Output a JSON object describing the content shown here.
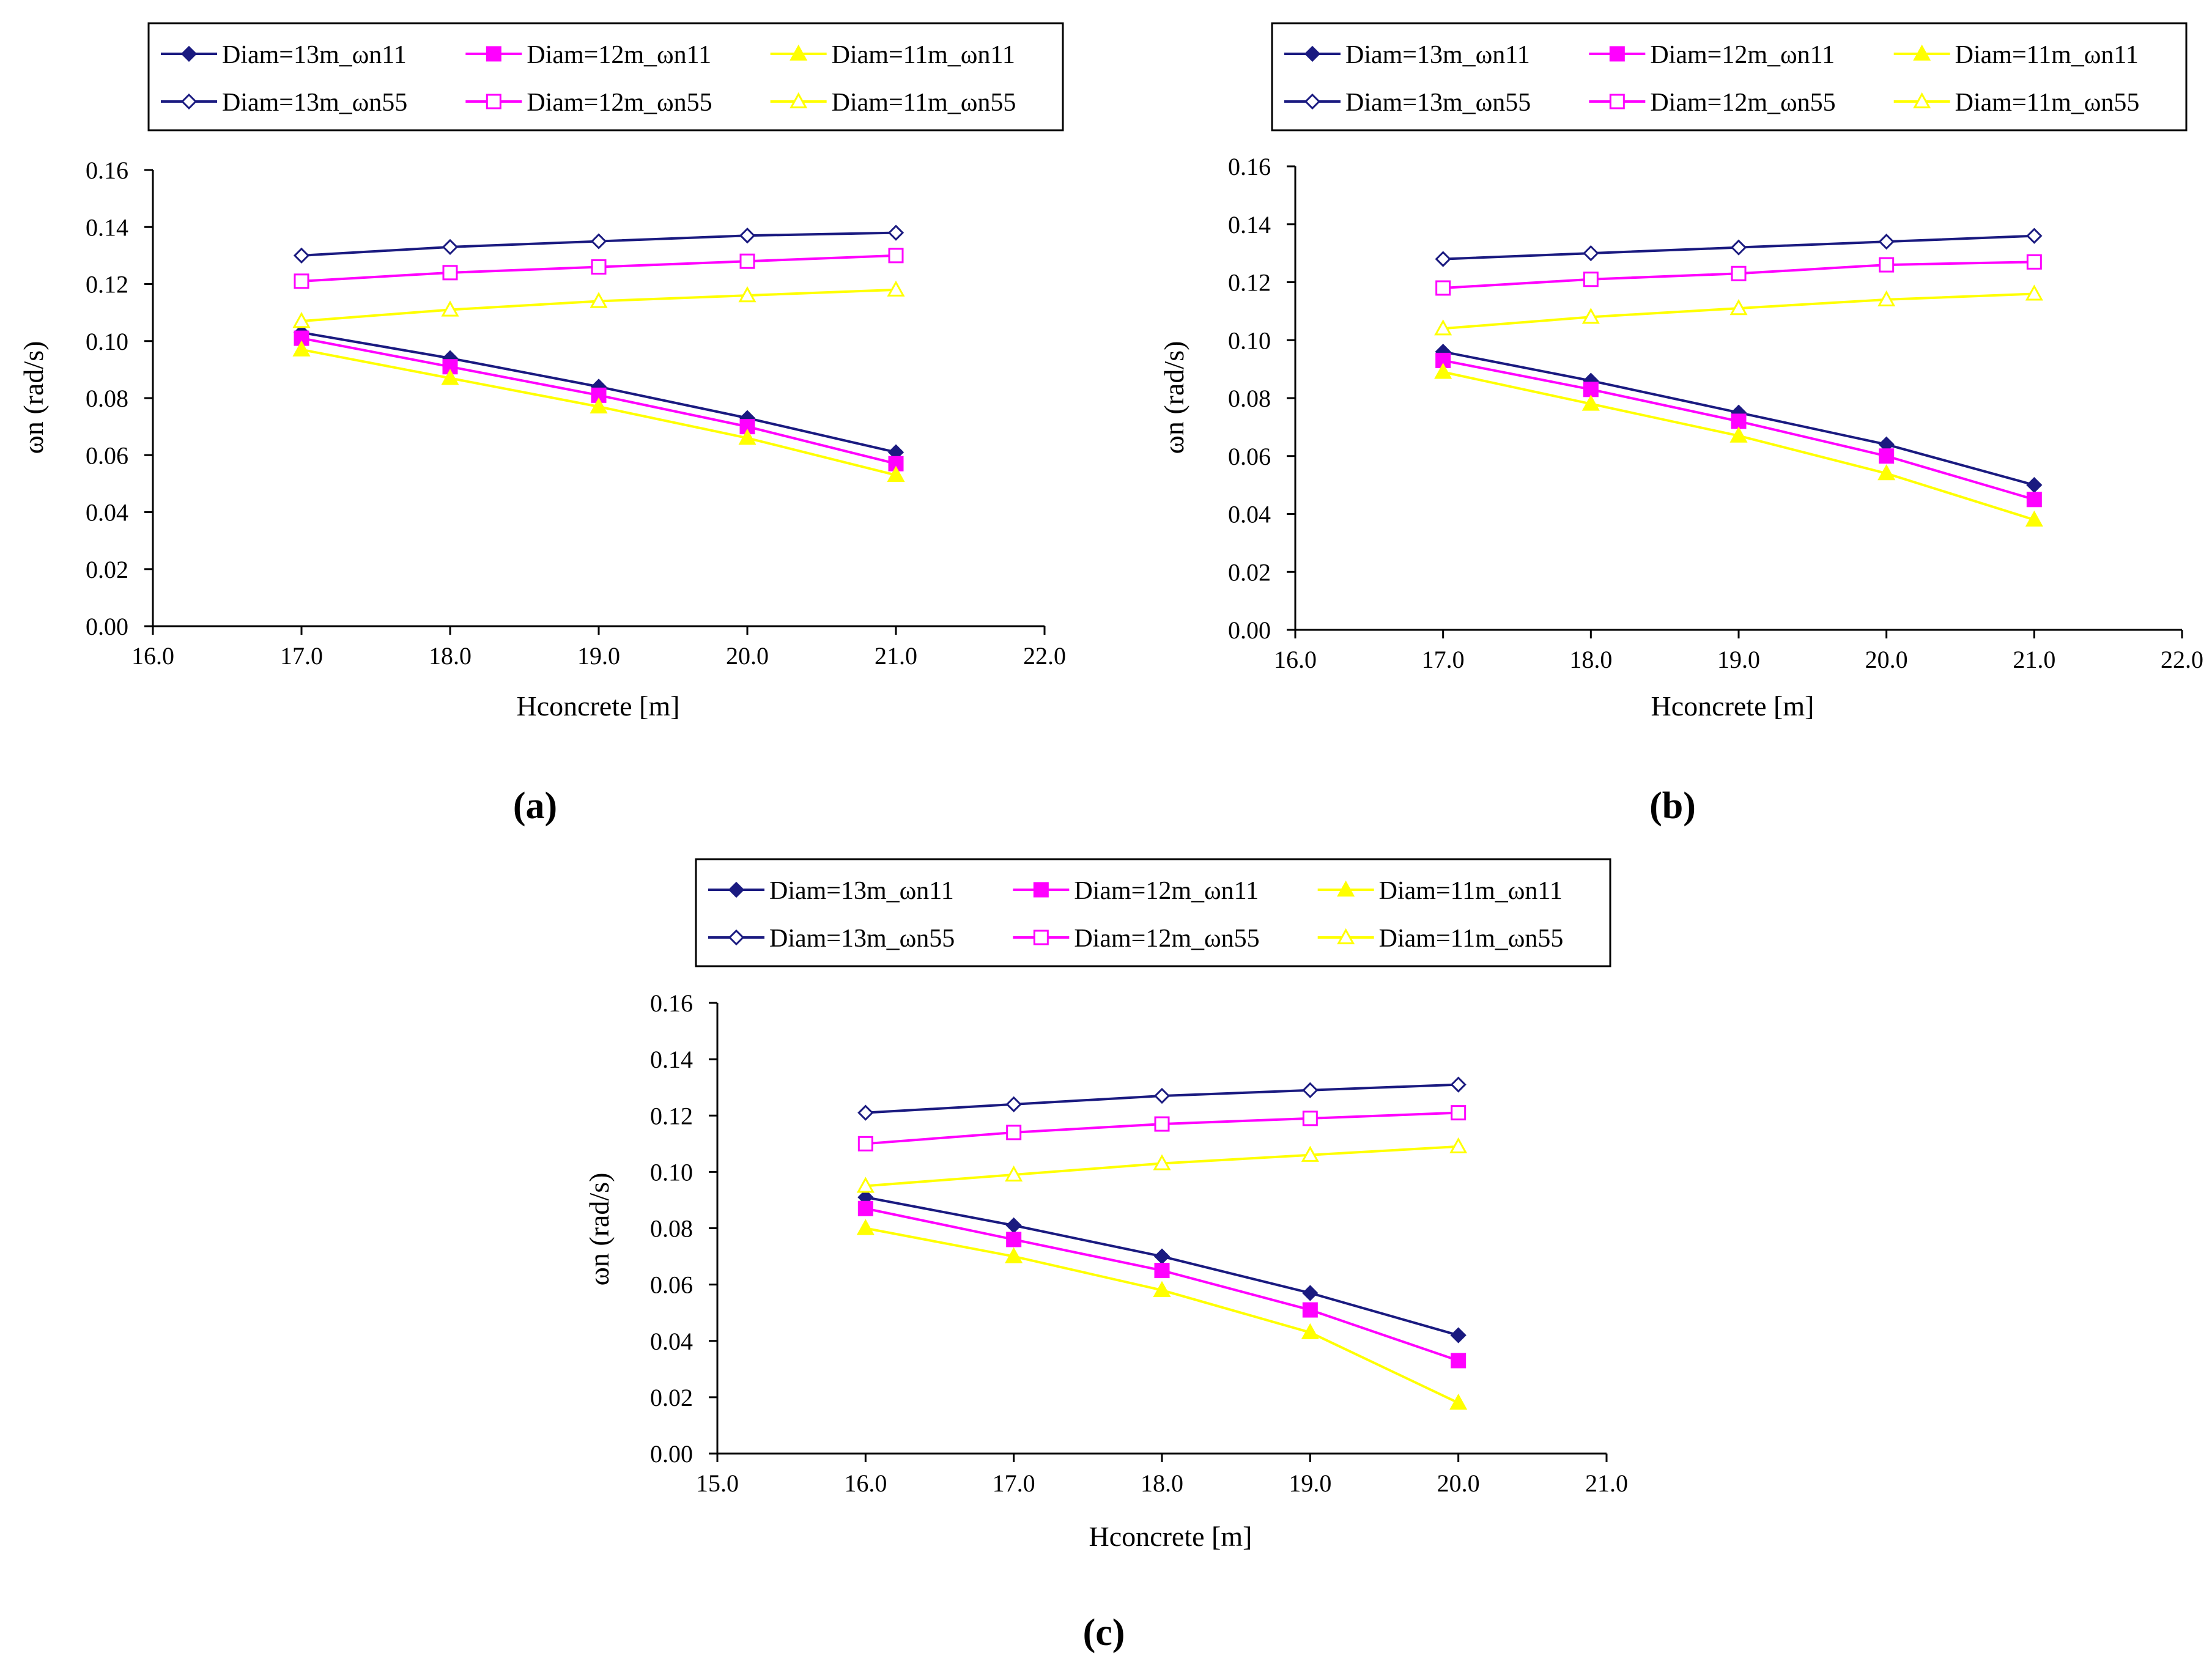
{
  "chart_data": [
    {
      "type": "line",
      "panel_label": "(a)",
      "xlabel": "Hconcrete [m]",
      "ylabel": "ωn (rad/s)",
      "xlim": [
        16.0,
        22.0
      ],
      "ylim": [
        0.0,
        0.16
      ],
      "xticks": [
        "16.0",
        "17.0",
        "18.0",
        "19.0",
        "20.0",
        "21.0",
        "22.0"
      ],
      "yticks": [
        "0.00",
        "0.02",
        "0.04",
        "0.06",
        "0.08",
        "0.10",
        "0.12",
        "0.14",
        "0.16"
      ],
      "x": [
        17.0,
        18.0,
        19.0,
        20.0,
        21.0
      ],
      "series": [
        {
          "name": "Diam=13m_ωn11",
          "color": "#1a1a80",
          "marker": "diamond",
          "filled": true,
          "values": [
            0.103,
            0.094,
            0.084,
            0.073,
            0.061
          ]
        },
        {
          "name": "Diam=12m_ωn11",
          "color": "#ff00ff",
          "marker": "square",
          "filled": true,
          "values": [
            0.101,
            0.091,
            0.081,
            0.07,
            0.057
          ]
        },
        {
          "name": "Diam=11m_ωn11",
          "color": "#ffff00",
          "marker": "triangle",
          "filled": true,
          "values": [
            0.097,
            0.087,
            0.077,
            0.066,
            0.053
          ]
        },
        {
          "name": "Diam=13m_ωn55",
          "color": "#1a1a80",
          "marker": "diamond",
          "filled": false,
          "values": [
            0.13,
            0.133,
            0.135,
            0.137,
            0.138
          ]
        },
        {
          "name": "Diam=12m_ωn55",
          "color": "#ff00ff",
          "marker": "square",
          "filled": false,
          "values": [
            0.121,
            0.124,
            0.126,
            0.128,
            0.13
          ]
        },
        {
          "name": "Diam=11m_ωn55",
          "color": "#ffff00",
          "marker": "triangle",
          "filled": false,
          "values": [
            0.107,
            0.111,
            0.114,
            0.116,
            0.118
          ]
        }
      ]
    },
    {
      "type": "line",
      "panel_label": "(b)",
      "xlabel": "Hconcrete [m]",
      "ylabel": "ωn (rad/s)",
      "xlim": [
        16.0,
        22.0
      ],
      "ylim": [
        0.0,
        0.16
      ],
      "xticks": [
        "16.0",
        "17.0",
        "18.0",
        "19.0",
        "20.0",
        "21.0",
        "22.0"
      ],
      "yticks": [
        "0.00",
        "0.02",
        "0.04",
        "0.06",
        "0.08",
        "0.10",
        "0.12",
        "0.14",
        "0.16"
      ],
      "x": [
        17.0,
        18.0,
        19.0,
        20.0,
        21.0
      ],
      "series": [
        {
          "name": "Diam=13m_ωn11",
          "color": "#1a1a80",
          "marker": "diamond",
          "filled": true,
          "values": [
            0.096,
            0.086,
            0.075,
            0.064,
            0.05
          ]
        },
        {
          "name": "Diam=12m_ωn11",
          "color": "#ff00ff",
          "marker": "square",
          "filled": true,
          "values": [
            0.093,
            0.083,
            0.072,
            0.06,
            0.045
          ]
        },
        {
          "name": "Diam=11m_ωn11",
          "color": "#ffff00",
          "marker": "triangle",
          "filled": true,
          "values": [
            0.089,
            0.078,
            0.067,
            0.054,
            0.038
          ]
        },
        {
          "name": "Diam=13m_ωn55",
          "color": "#1a1a80",
          "marker": "diamond",
          "filled": false,
          "values": [
            0.128,
            0.13,
            0.132,
            0.134,
            0.136
          ]
        },
        {
          "name": "Diam=12m_ωn55",
          "color": "#ff00ff",
          "marker": "square",
          "filled": false,
          "values": [
            0.118,
            0.121,
            0.123,
            0.126,
            0.127
          ]
        },
        {
          "name": "Diam=11m_ωn55",
          "color": "#ffff00",
          "marker": "triangle",
          "filled": false,
          "values": [
            0.104,
            0.108,
            0.111,
            0.114,
            0.116
          ]
        }
      ]
    },
    {
      "type": "line",
      "panel_label": "(c)",
      "xlabel": "Hconcrete [m]",
      "ylabel": "ωn (rad/s)",
      "xlim": [
        15.0,
        21.0
      ],
      "ylim": [
        0.0,
        0.16
      ],
      "xticks": [
        "15.0",
        "16.0",
        "17.0",
        "18.0",
        "19.0",
        "20.0",
        "21.0"
      ],
      "yticks": [
        "0.00",
        "0.02",
        "0.04",
        "0.06",
        "0.08",
        "0.10",
        "0.12",
        "0.14",
        "0.16"
      ],
      "x": [
        16.0,
        17.0,
        18.0,
        19.0,
        20.0
      ],
      "series": [
        {
          "name": "Diam=13m_ωn11",
          "color": "#1a1a80",
          "marker": "diamond",
          "filled": true,
          "values": [
            0.091,
            0.081,
            0.07,
            0.057,
            0.042
          ]
        },
        {
          "name": "Diam=12m_ωn11",
          "color": "#ff00ff",
          "marker": "square",
          "filled": true,
          "values": [
            0.087,
            0.076,
            0.065,
            0.051,
            0.033
          ]
        },
        {
          "name": "Diam=11m_ωn11",
          "color": "#ffff00",
          "marker": "triangle",
          "filled": true,
          "values": [
            0.08,
            0.07,
            0.058,
            0.043,
            0.018
          ]
        },
        {
          "name": "Diam=13m_ωn55",
          "color": "#1a1a80",
          "marker": "diamond",
          "filled": false,
          "values": [
            0.121,
            0.124,
            0.127,
            0.129,
            0.131
          ]
        },
        {
          "name": "Diam=12m_ωn55",
          "color": "#ff00ff",
          "marker": "square",
          "filled": false,
          "values": [
            0.11,
            0.114,
            0.117,
            0.119,
            0.121
          ]
        },
        {
          "name": "Diam=11m_ωn55",
          "color": "#ffff00",
          "marker": "triangle",
          "filled": false,
          "values": [
            0.095,
            0.099,
            0.103,
            0.106,
            0.109
          ]
        }
      ]
    }
  ]
}
